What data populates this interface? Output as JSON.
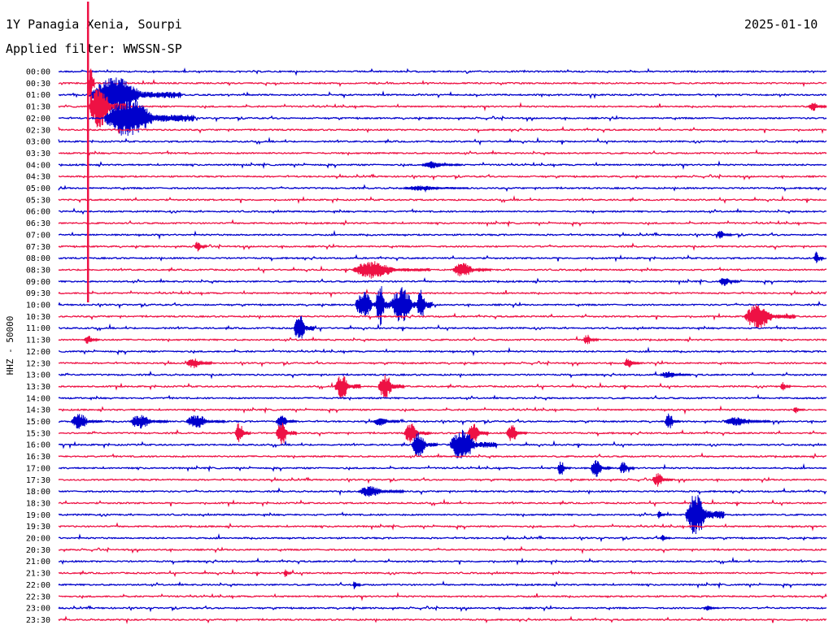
{
  "header": {
    "station": "1Y Panagia Xenia, Sourpi",
    "date": "2025-01-10",
    "filter": "Applied filter: WWSSN-SP"
  },
  "chart_data": {
    "type": "line",
    "ylabel": "HHZ - 50000",
    "row_labels": [
      "00:00",
      "00:30",
      "01:00",
      "01:30",
      "02:00",
      "02:30",
      "03:00",
      "03:30",
      "04:00",
      "04:30",
      "05:00",
      "05:30",
      "06:00",
      "06:30",
      "07:00",
      "07:30",
      "08:00",
      "08:30",
      "09:00",
      "09:30",
      "10:00",
      "10:30",
      "11:00",
      "11:30",
      "12:00",
      "12:30",
      "13:00",
      "13:30",
      "14:00",
      "14:30",
      "15:00",
      "15:30",
      "16:00",
      "16:30",
      "17:00",
      "17:30",
      "18:00",
      "18:30",
      "19:00",
      "19:30",
      "20:00",
      "20:30",
      "21:00",
      "21:30",
      "22:00",
      "22:30",
      "23:00",
      "23:30"
    ],
    "colors": {
      "even": "#0000cc",
      "odd": "#ee1144"
    },
    "time_range_minutes": [
      0,
      30
    ],
    "events": [
      {
        "row": 1,
        "minute": 1.2,
        "amp": 40,
        "dur": 0.2
      },
      {
        "row": 2,
        "minute": 1.3,
        "amp": 20,
        "dur": 3.5
      },
      {
        "row": 3,
        "minute": 1.2,
        "amp": 25,
        "dur": 1.5
      },
      {
        "row": 4,
        "minute": 1.8,
        "amp": 22,
        "dur": 3.5
      },
      {
        "row": 3,
        "minute": 29.3,
        "amp": 5,
        "dur": 0.8
      },
      {
        "row": 8,
        "minute": 14.2,
        "amp": 4,
        "dur": 1.5
      },
      {
        "row": 10,
        "minute": 13.5,
        "amp": 3,
        "dur": 2.5
      },
      {
        "row": 15,
        "minute": 5.3,
        "amp": 6,
        "dur": 0.5
      },
      {
        "row": 14,
        "minute": 25.7,
        "amp": 5,
        "dur": 0.6
      },
      {
        "row": 16,
        "minute": 29.5,
        "amp": 8,
        "dur": 0.4
      },
      {
        "row": 17,
        "minute": 11.5,
        "amp": 10,
        "dur": 3
      },
      {
        "row": 17,
        "minute": 15.4,
        "amp": 8,
        "dur": 1.5
      },
      {
        "row": 18,
        "minute": 25.8,
        "amp": 5,
        "dur": 0.8
      },
      {
        "row": 20,
        "minute": 11.6,
        "amp": 16,
        "dur": 1.2
      },
      {
        "row": 20,
        "minute": 12.4,
        "amp": 25,
        "dur": 0.6
      },
      {
        "row": 20,
        "minute": 13.0,
        "amp": 20,
        "dur": 1.5
      },
      {
        "row": 20,
        "minute": 14.0,
        "amp": 18,
        "dur": 0.6
      },
      {
        "row": 21,
        "minute": 26.8,
        "amp": 14,
        "dur": 2
      },
      {
        "row": 22,
        "minute": 9.2,
        "amp": 16,
        "dur": 0.8
      },
      {
        "row": 23,
        "minute": 1.0,
        "amp": 5,
        "dur": 0.6
      },
      {
        "row": 23,
        "minute": 20.5,
        "amp": 6,
        "dur": 0.6
      },
      {
        "row": 25,
        "minute": 5.0,
        "amp": 6,
        "dur": 1.0
      },
      {
        "row": 25,
        "minute": 22.1,
        "amp": 6,
        "dur": 0.6
      },
      {
        "row": 26,
        "minute": 23.5,
        "amp": 4,
        "dur": 1.2
      },
      {
        "row": 27,
        "minute": 10.8,
        "amp": 14,
        "dur": 1.0
      },
      {
        "row": 27,
        "minute": 12.5,
        "amp": 14,
        "dur": 1.0
      },
      {
        "row": 27,
        "minute": 28.2,
        "amp": 5,
        "dur": 0.4
      },
      {
        "row": 29,
        "minute": 28.7,
        "amp": 4,
        "dur": 0.4
      },
      {
        "row": 30,
        "minute": 0.5,
        "amp": 9,
        "dur": 1.2
      },
      {
        "row": 30,
        "minute": 2.8,
        "amp": 8,
        "dur": 1.5
      },
      {
        "row": 30,
        "minute": 5.0,
        "amp": 8,
        "dur": 1.5
      },
      {
        "row": 30,
        "minute": 8.5,
        "amp": 8,
        "dur": 0.8
      },
      {
        "row": 30,
        "minute": 12.3,
        "amp": 5,
        "dur": 1.0
      },
      {
        "row": 30,
        "minute": 23.7,
        "amp": 9,
        "dur": 0.6
      },
      {
        "row": 30,
        "minute": 26.0,
        "amp": 5,
        "dur": 1.8
      },
      {
        "row": 31,
        "minute": 6.9,
        "amp": 12,
        "dur": 0.6
      },
      {
        "row": 31,
        "minute": 8.5,
        "amp": 14,
        "dur": 0.8
      },
      {
        "row": 31,
        "minute": 13.5,
        "amp": 12,
        "dur": 1.0
      },
      {
        "row": 31,
        "minute": 16.0,
        "amp": 12,
        "dur": 0.8
      },
      {
        "row": 31,
        "minute": 17.5,
        "amp": 10,
        "dur": 0.8
      },
      {
        "row": 32,
        "minute": 13.8,
        "amp": 14,
        "dur": 1.0
      },
      {
        "row": 32,
        "minute": 15.3,
        "amp": 18,
        "dur": 1.8
      },
      {
        "row": 34,
        "minute": 19.5,
        "amp": 9,
        "dur": 0.5
      },
      {
        "row": 34,
        "minute": 20.8,
        "amp": 10,
        "dur": 0.8
      },
      {
        "row": 34,
        "minute": 21.9,
        "amp": 7,
        "dur": 0.6
      },
      {
        "row": 35,
        "minute": 23.2,
        "amp": 8,
        "dur": 0.8
      },
      {
        "row": 36,
        "minute": 11.7,
        "amp": 6,
        "dur": 1.8
      },
      {
        "row": 38,
        "minute": 24.5,
        "amp": 24,
        "dur": 1.5
      },
      {
        "row": 38,
        "minute": 23.4,
        "amp": 5,
        "dur": 0.3
      },
      {
        "row": 40,
        "minute": 23.5,
        "amp": 4,
        "dur": 0.4
      },
      {
        "row": 43,
        "minute": 8.8,
        "amp": 5,
        "dur": 0.3
      },
      {
        "row": 44,
        "minute": 11.5,
        "amp": 6,
        "dur": 0.3
      },
      {
        "row": 46,
        "minute": 25.2,
        "amp": 3,
        "dur": 0.6
      }
    ]
  }
}
